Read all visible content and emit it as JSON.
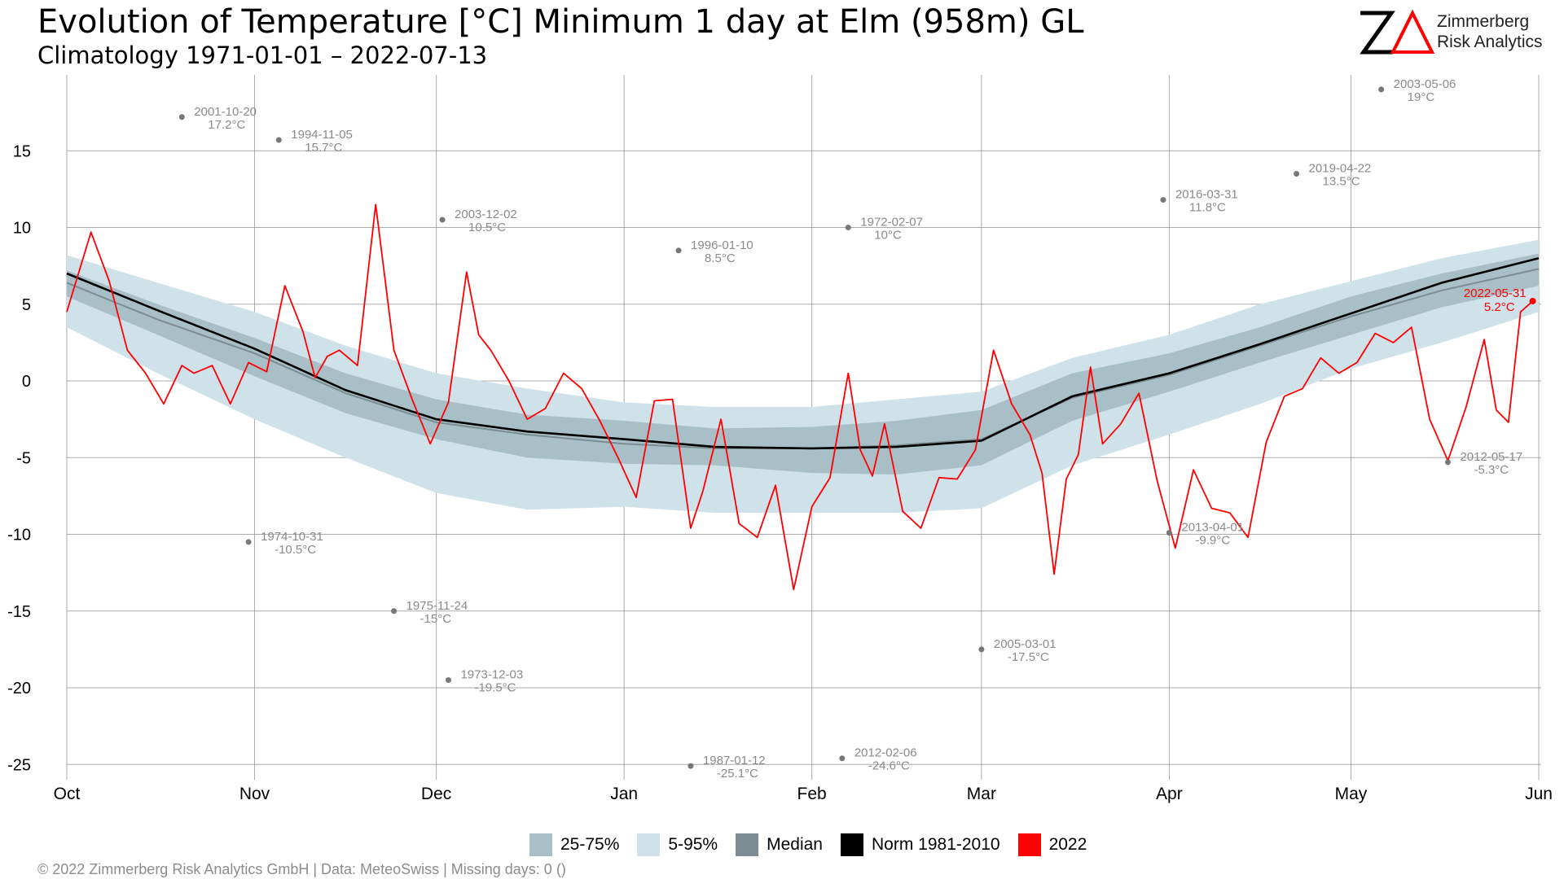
{
  "header": {
    "title": "Evolution of Temperature [°C] Minimum 1 day at Elm (958m) GL",
    "subtitle": "Climatology 1971-01-01 – 2022-07-13"
  },
  "logo": {
    "mark": "ZΔ",
    "line1": "Zimmerberg",
    "line2": "Risk Analytics"
  },
  "footer": {
    "text": "©  2022 Zimmerberg Risk Analytics GmbH | Data: MeteoSwiss | Missing days: 0 ()"
  },
  "colors": {
    "band_5_95": "#cfe2ea",
    "band_25_75": "#a9bfc7",
    "median": "#7b8c92",
    "norm": "#000000",
    "current": "#ff0000",
    "grid": "#888888",
    "annotation": "#8a8a8a"
  },
  "chart_data": {
    "type": "line",
    "title": "Evolution of Temperature [°C] Minimum 1 day at Elm (958m) GL",
    "xlabel": "",
    "ylabel": "",
    "ylim": [
      -25,
      19
    ],
    "yticks": [
      15,
      10,
      5,
      0,
      -5,
      -10,
      -15,
      -20,
      -25
    ],
    "x_months": [
      "Oct",
      "Nov",
      "Dec",
      "Jan",
      "Feb",
      "Mar",
      "Apr",
      "May",
      "Jun"
    ],
    "x_month_day_offsets": [
      0,
      31,
      61,
      92,
      123,
      151,
      182,
      212,
      243
    ],
    "grid": true,
    "legend": {
      "position": "bottom",
      "items": [
        {
          "label": "25-75%",
          "key": "band_25_75"
        },
        {
          "label": "5-95%",
          "key": "band_5_95"
        },
        {
          "label": "Median",
          "key": "median"
        },
        {
          "label": "Norm 1981-2010",
          "key": "norm"
        },
        {
          "label": "2022",
          "key": "current"
        }
      ]
    },
    "climatology": {
      "day": [
        0,
        15,
        31,
        46,
        61,
        76,
        92,
        107,
        123,
        137,
        151,
        166,
        182,
        197,
        212,
        227,
        243
      ],
      "p5": [
        3.5,
        0.5,
        -2.5,
        -5,
        -7.3,
        -8.4,
        -8.2,
        -8.6,
        -8.6,
        -8.6,
        -8.3,
        -5.5,
        -3.5,
        -1.5,
        0.8,
        2.5,
        4.5
      ],
      "p25": [
        5.5,
        3,
        0.3,
        -2.1,
        -3.8,
        -5,
        -5.4,
        -5.5,
        -6,
        -6.1,
        -5.5,
        -2.6,
        -0.7,
        1.2,
        3,
        4.8,
        6.2
      ],
      "p75": [
        7.2,
        5,
        2.8,
        0.5,
        -1.2,
        -2.2,
        -2.6,
        -3.1,
        -3,
        -2.6,
        -1.9,
        0.5,
        1.8,
        3.5,
        5.5,
        7,
        8.3
      ],
      "p95": [
        8.2,
        6.4,
        4.5,
        2.3,
        0.5,
        -0.5,
        -1.4,
        -1.7,
        -1.7,
        -1.2,
        -0.7,
        1.5,
        3,
        5,
        6.5,
        8,
        9.2
      ],
      "median": [
        6.4,
        4,
        1.8,
        -0.8,
        -2.7,
        -3.5,
        -4.1,
        -4.4,
        -4.4,
        -4.2,
        -3.8,
        -1.1,
        0.4,
        2.3,
        4.2,
        5.9,
        7.3
      ],
      "norm": [
        7,
        4.6,
        2.1,
        -0.6,
        -2.5,
        -3.3,
        -3.8,
        -4.3,
        -4.4,
        -4.3,
        -3.9,
        -1,
        0.5,
        2.4,
        4.4,
        6.4,
        8
      ]
    },
    "series_2022": {
      "day": [
        0,
        4,
        7,
        10,
        13,
        16,
        19,
        21,
        24,
        27,
        30,
        33,
        36,
        39,
        41,
        43,
        45,
        48,
        51,
        54,
        57,
        60,
        63,
        66,
        68,
        70,
        73,
        76,
        79,
        82,
        85,
        88,
        91,
        94,
        97,
        100,
        103,
        105,
        108,
        111,
        114,
        117,
        120,
        123,
        126,
        129,
        131,
        133,
        135,
        138,
        141,
        144,
        147,
        150,
        153,
        156,
        159,
        161,
        163,
        165,
        167,
        169,
        171,
        174,
        177,
        180,
        183,
        186,
        189,
        192,
        195,
        198,
        201,
        204,
        207,
        210,
        213,
        216,
        219,
        222,
        225,
        228,
        231,
        234,
        236,
        238,
        240,
        242
      ],
      "values": [
        4.5,
        9.7,
        6.5,
        2,
        0.5,
        -1.5,
        1,
        0.5,
        1,
        -1.5,
        1.2,
        0.6,
        6.2,
        3.2,
        0.2,
        1.6,
        2,
        1,
        11.5,
        2,
        -1.2,
        -4.1,
        -1.4,
        7.1,
        3,
        2,
        0,
        -2.5,
        -1.8,
        0.5,
        -0.5,
        -2.6,
        -5,
        -7.6,
        -1.3,
        -1.2,
        -9.6,
        -7.2,
        -2.5,
        -9.3,
        -10.2,
        -6.8,
        -13.6,
        -8.2,
        -6.3,
        0.5,
        -4.5,
        -6.2,
        -2.8,
        -8.5,
        -9.6,
        -6.3,
        -6.4,
        -4.5,
        2,
        -1.5,
        -3.5,
        -6,
        -12.6,
        -6.4,
        -4.8,
        0.9,
        -4.1,
        -2.8,
        -0.8,
        -6.5,
        -10.9,
        -5.8,
        -8.3,
        -8.6,
        -10.2,
        -4,
        -1,
        -0.5,
        1.5,
        0.5,
        1.2,
        3.1,
        2.5,
        3.5,
        -2.5,
        -5.2,
        -1.7,
        2.7,
        -1.9,
        -2.7,
        4.5,
        5.2
      ],
      "last_label": {
        "date": "2022-05-31",
        "value": "5.2°C"
      }
    },
    "extremes": [
      {
        "day": 19,
        "value": 17.2,
        "date": "2001-10-20",
        "label": "17.2°C"
      },
      {
        "day": 35,
        "value": 15.7,
        "date": "1994-11-05",
        "label": "15.7°C"
      },
      {
        "day": 62,
        "value": 10.5,
        "date": "2003-12-02",
        "label": "10.5°C"
      },
      {
        "day": 101,
        "value": 8.5,
        "date": "1996-01-10",
        "label": "8.5°C"
      },
      {
        "day": 129,
        "value": 10,
        "date": "1972-02-07",
        "label": "10°C"
      },
      {
        "day": 181,
        "value": 11.8,
        "date": "2016-03-31",
        "label": "11.8°C"
      },
      {
        "day": 203,
        "value": 13.5,
        "date": "2019-04-22",
        "label": "13.5°C"
      },
      {
        "day": 217,
        "value": 19,
        "date": "2003-05-06",
        "label": "19°C"
      },
      {
        "day": 30,
        "value": -10.5,
        "date": "1974-10-31",
        "label": "-10.5°C"
      },
      {
        "day": 54,
        "value": -15,
        "date": "1975-11-24",
        "label": "-15°C"
      },
      {
        "day": 63,
        "value": -19.5,
        "date": "1973-12-03",
        "label": "-19.5°C"
      },
      {
        "day": 103,
        "value": -25.1,
        "date": "1987-01-12",
        "label": "-25.1°C"
      },
      {
        "day": 128,
        "value": -24.6,
        "date": "2012-02-06",
        "label": "-24.6°C"
      },
      {
        "day": 151,
        "value": -17.5,
        "date": "2005-03-01",
        "label": "-17.5°C"
      },
      {
        "day": 182,
        "value": -9.9,
        "date": "2013-04-01",
        "label": "-9.9°C"
      },
      {
        "day": 228,
        "value": -5.3,
        "date": "2012-05-17",
        "label": "-5.3°C"
      }
    ]
  }
}
